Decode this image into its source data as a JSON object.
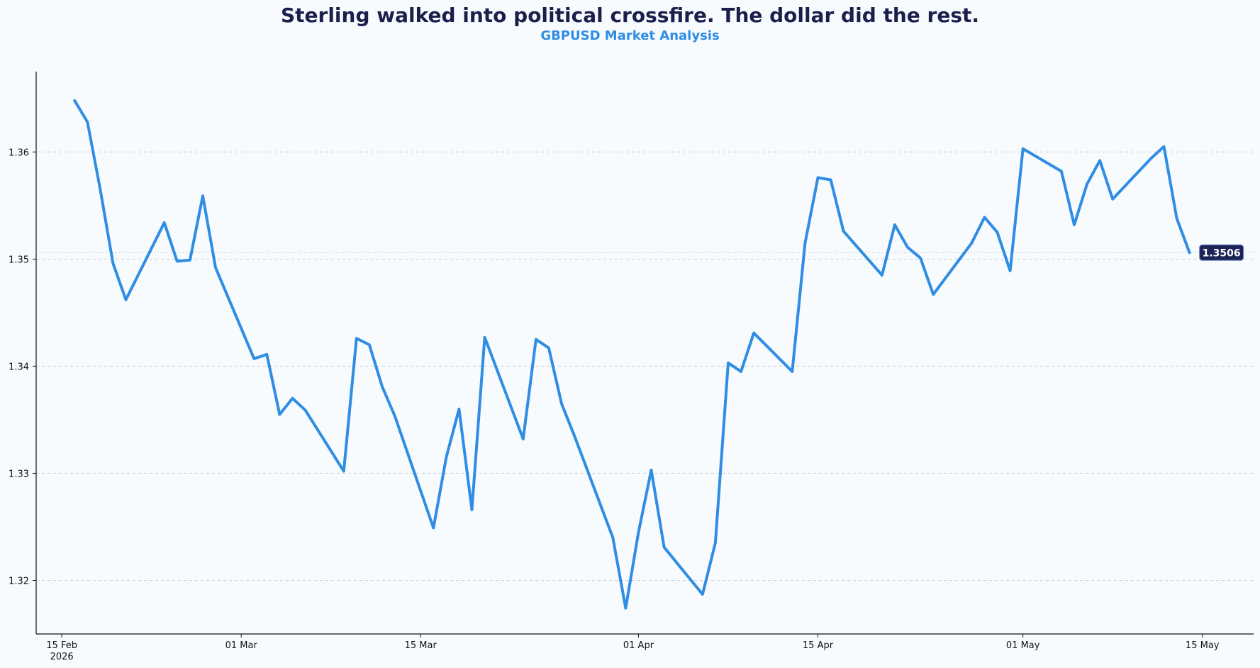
{
  "chart_data": {
    "type": "line",
    "title": "Sterling walked into political crossfire. The dollar did the rest.",
    "subtitle": "GBPUSD Market Analysis",
    "xlabel": "",
    "ylabel": "",
    "xlim": [
      "2026-02-13",
      "2026-05-19"
    ],
    "ylim": [
      1.315,
      1.3675
    ],
    "grid": "horizontal dashed",
    "x_ticks": [
      {
        "date": "2026-02-15",
        "label": "15 Feb",
        "label2": "2026"
      },
      {
        "date": "2026-03-01",
        "label": "01 Mar",
        "label2": ""
      },
      {
        "date": "2026-03-15",
        "label": "15 Mar",
        "label2": ""
      },
      {
        "date": "2026-04-01",
        "label": "01 Apr",
        "label2": ""
      },
      {
        "date": "2026-04-15",
        "label": "15 Apr",
        "label2": ""
      },
      {
        "date": "2026-05-01",
        "label": "01 May",
        "label2": ""
      },
      {
        "date": "2026-05-15",
        "label": "15 May",
        "label2": ""
      }
    ],
    "y_ticks": [
      {
        "value": 1.32,
        "label": "1.32"
      },
      {
        "value": 1.33,
        "label": "1.33"
      },
      {
        "value": 1.34,
        "label": "1.34"
      },
      {
        "value": 1.35,
        "label": "1.35"
      },
      {
        "value": 1.36,
        "label": "1.36"
      }
    ],
    "series": [
      {
        "color": "#2f8de4",
        "points": [
          [
            "2026-02-16",
            1.3648
          ],
          [
            "2026-02-17",
            1.3628
          ],
          [
            "2026-02-18",
            1.3565
          ],
          [
            "2026-02-19",
            1.3496
          ],
          [
            "2026-02-20",
            1.3462
          ],
          [
            "2026-02-23",
            1.3534
          ],
          [
            "2026-02-24",
            1.3498
          ],
          [
            "2026-02-25",
            1.3499
          ],
          [
            "2026-02-26",
            1.3559
          ],
          [
            "2026-02-27",
            1.3492
          ],
          [
            "2026-03-02",
            1.3407
          ],
          [
            "2026-03-03",
            1.3411
          ],
          [
            "2026-03-04",
            1.3355
          ],
          [
            "2026-03-05",
            1.337
          ],
          [
            "2026-03-06",
            1.3359
          ],
          [
            "2026-03-09",
            1.3302
          ],
          [
            "2026-03-10",
            1.3426
          ],
          [
            "2026-03-11",
            1.342
          ],
          [
            "2026-03-12",
            1.3381
          ],
          [
            "2026-03-13",
            1.3353
          ],
          [
            "2026-03-16",
            1.3249
          ],
          [
            "2026-03-17",
            1.3315
          ],
          [
            "2026-03-18",
            1.336
          ],
          [
            "2026-03-19",
            1.3266
          ],
          [
            "2026-03-20",
            1.3427
          ],
          [
            "2026-03-23",
            1.3332
          ],
          [
            "2026-03-24",
            1.3425
          ],
          [
            "2026-03-25",
            1.3417
          ],
          [
            "2026-03-26",
            1.3365
          ],
          [
            "2026-03-27",
            1.3335
          ],
          [
            "2026-03-30",
            1.324
          ],
          [
            "2026-03-31",
            1.3174
          ],
          [
            "2026-04-01",
            1.3245
          ],
          [
            "2026-04-02",
            1.3303
          ],
          [
            "2026-04-03",
            1.3231
          ],
          [
            "2026-04-06",
            1.3187
          ],
          [
            "2026-04-07",
            1.3235
          ],
          [
            "2026-04-08",
            1.3403
          ],
          [
            "2026-04-09",
            1.3395
          ],
          [
            "2026-04-10",
            1.3431
          ],
          [
            "2026-04-13",
            1.3395
          ],
          [
            "2026-04-14",
            1.3515
          ],
          [
            "2026-04-15",
            1.3576
          ],
          [
            "2026-04-16",
            1.3574
          ],
          [
            "2026-04-17",
            1.3526
          ],
          [
            "2026-04-20",
            1.3485
          ],
          [
            "2026-04-21",
            1.3532
          ],
          [
            "2026-04-22",
            1.3511
          ],
          [
            "2026-04-23",
            1.3501
          ],
          [
            "2026-04-24",
            1.3467
          ],
          [
            "2026-04-27",
            1.3515
          ],
          [
            "2026-04-28",
            1.3539
          ],
          [
            "2026-04-29",
            1.3525
          ],
          [
            "2026-04-30",
            1.3489
          ],
          [
            "2026-05-01",
            1.3603
          ],
          [
            "2026-05-04",
            1.3582
          ],
          [
            "2026-05-05",
            1.3532
          ],
          [
            "2026-05-06",
            1.357
          ],
          [
            "2026-05-07",
            1.3592
          ],
          [
            "2026-05-08",
            1.3556
          ],
          [
            "2026-05-11",
            1.3594
          ],
          [
            "2026-05-12",
            1.3605
          ],
          [
            "2026-05-13",
            1.3538
          ],
          [
            "2026-05-14",
            1.3506
          ]
        ]
      }
    ],
    "last_value": {
      "value": 1.3506,
      "label": "1.3506",
      "badge_color": "#1b2457"
    }
  }
}
